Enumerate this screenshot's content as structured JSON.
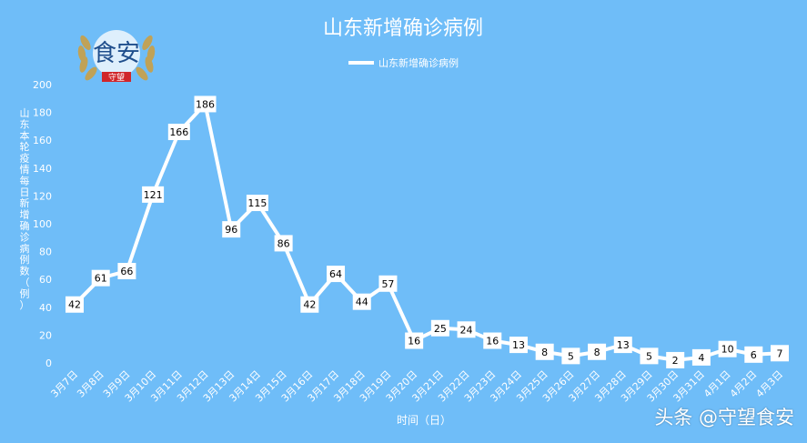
{
  "chart_data": {
    "type": "line",
    "title": "山东新增确诊病例",
    "xlabel": "时间（日）",
    "ylabel": "山东本轮疫情每日新增确诊病例数（例）",
    "ylim": [
      0,
      200
    ],
    "yticks": [
      0,
      20,
      40,
      60,
      80,
      100,
      120,
      140,
      160,
      180,
      200
    ],
    "categories": [
      "3月7日",
      "3月8日",
      "3月9日",
      "3月10日",
      "3月11日",
      "3月12日",
      "3月13日",
      "3月14日",
      "3月15日",
      "3月16日",
      "3月17日",
      "3月18日",
      "3月19日",
      "3月20日",
      "3月21日",
      "3月22日",
      "3月23日",
      "3月24日",
      "3月25日",
      "3月26日",
      "3月27日",
      "3月28日",
      "3月29日",
      "3月30日",
      "3月31日",
      "4月1日",
      "4月2日",
      "4月3日"
    ],
    "series": [
      {
        "name": "山东新增确诊病例",
        "values": [
          42,
          61,
          66,
          121,
          166,
          186,
          96,
          115,
          86,
          42,
          64,
          44,
          57,
          16,
          25,
          24,
          16,
          13,
          8,
          5,
          8,
          13,
          5,
          2,
          4,
          10,
          6,
          7
        ]
      }
    ],
    "legend": "top-center",
    "grid": false
  },
  "colors": {
    "background": "#6fbdf8",
    "line": "#ffffff",
    "text": "#ffffff",
    "label_box": "#ffffff",
    "label_text": "#000000"
  },
  "logo": {
    "text": "食安",
    "badge": "守望"
  },
  "watermark": "头条 @守望食安"
}
